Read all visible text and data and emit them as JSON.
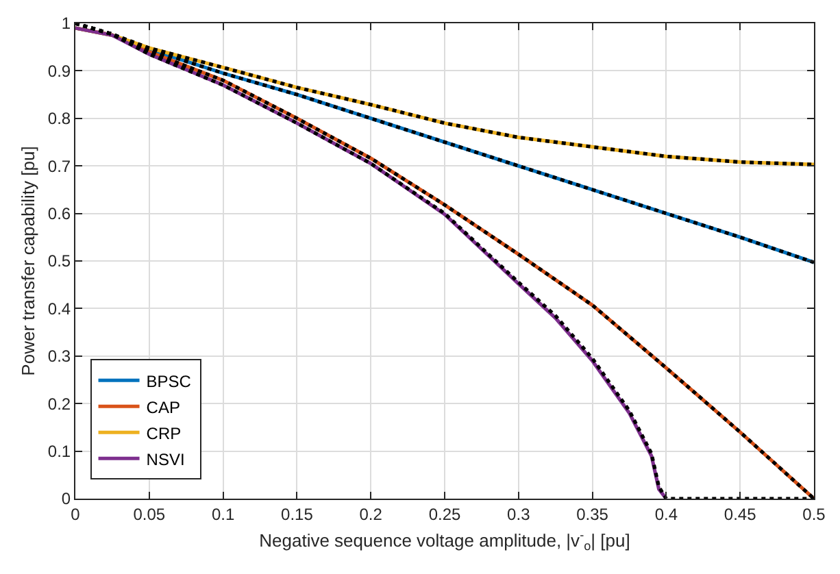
{
  "chart_data": {
    "type": "line",
    "xlabel": "Negative sequence voltage amplitude, |v$^{-}$$_{o}$| [pu]",
    "ylabel": "Power transfer capability [pu]",
    "xlim": [
      0,
      0.5
    ],
    "xticks": [
      0,
      0.05,
      0.1,
      0.15,
      0.2,
      0.25,
      0.3,
      0.35,
      0.4,
      0.45,
      0.5
    ],
    "ylim": [
      0,
      1
    ],
    "yticks": [
      0,
      0.1,
      0.2,
      0.3,
      0.4,
      0.5,
      0.6,
      0.7,
      0.8,
      0.9,
      1
    ],
    "grid": true,
    "legend": "bottom left",
    "line_style": "solid",
    "marker": "none",
    "series": [
      {
        "name": "BPSC",
        "color": "#0072bd",
        "x": [
          0,
          0.025,
          0.05,
          0.1,
          0.15,
          0.2,
          0.25,
          0.3,
          0.35,
          0.4,
          0.45,
          0.5
        ],
        "values": [
          0.99,
          0.975,
          0.945,
          0.895,
          0.85,
          0.8,
          0.75,
          0.7,
          0.65,
          0.6,
          0.55,
          0.497
        ]
      },
      {
        "name": "CAP",
        "color": "#d95319",
        "x": [
          0,
          0.025,
          0.05,
          0.1,
          0.15,
          0.2,
          0.25,
          0.3,
          0.35,
          0.4,
          0.45,
          0.5
        ],
        "values": [
          0.99,
          0.975,
          0.94,
          0.88,
          0.8,
          0.716,
          0.618,
          0.514,
          0.407,
          0.275,
          0.14,
          0.0
        ]
      },
      {
        "name": "CRP",
        "color": "#edb120",
        "x": [
          0,
          0.025,
          0.05,
          0.1,
          0.15,
          0.2,
          0.25,
          0.3,
          0.35,
          0.4,
          0.45,
          0.5
        ],
        "values": [
          0.99,
          0.975,
          0.948,
          0.907,
          0.865,
          0.829,
          0.79,
          0.76,
          0.74,
          0.72,
          0.708,
          0.703
        ]
      },
      {
        "name": "NSVI",
        "color": "#7e2f8e",
        "x": [
          0,
          0.025,
          0.05,
          0.1,
          0.15,
          0.2,
          0.25,
          0.3,
          0.325,
          0.35,
          0.375,
          0.39,
          0.395,
          0.4
        ],
        "values": [
          0.99,
          0.975,
          0.935,
          0.87,
          0.79,
          0.705,
          0.598,
          0.452,
          0.38,
          0.29,
          0.18,
          0.09,
          0.02,
          0.0
        ]
      },
      {
        "color": "#000000",
        "line_style": "dotted",
        "x": [
          0,
          0.025,
          0.05,
          0.1,
          0.15,
          0.2,
          0.25,
          0.3,
          0.35,
          0.4,
          0.45,
          0.5
        ],
        "values": [
          1.0,
          0.977,
          0.945,
          0.895,
          0.85,
          0.8,
          0.75,
          0.7,
          0.65,
          0.6,
          0.55,
          0.497
        ]
      },
      {
        "color": "#000000",
        "line_style": "dotted",
        "x": [
          0,
          0.025,
          0.05,
          0.1,
          0.15,
          0.2,
          0.25,
          0.3,
          0.35,
          0.4,
          0.45,
          0.5
        ],
        "values": [
          1.0,
          0.977,
          0.94,
          0.88,
          0.8,
          0.716,
          0.618,
          0.514,
          0.407,
          0.275,
          0.14,
          0.0
        ]
      },
      {
        "color": "#000000",
        "line_style": "dotted",
        "x": [
          0,
          0.025,
          0.05,
          0.1,
          0.15,
          0.2,
          0.25,
          0.3,
          0.35,
          0.4,
          0.45,
          0.5
        ],
        "values": [
          1.0,
          0.977,
          0.948,
          0.907,
          0.865,
          0.829,
          0.79,
          0.76,
          0.74,
          0.72,
          0.708,
          0.703
        ]
      },
      {
        "color": "#000000",
        "line_style": "dotted",
        "x": [
          0,
          0.025,
          0.05,
          0.1,
          0.15,
          0.2,
          0.25,
          0.3,
          0.325,
          0.35,
          0.375,
          0.39,
          0.395,
          0.4,
          0.45,
          0.5
        ],
        "values": [
          1.0,
          0.977,
          0.935,
          0.87,
          0.79,
          0.705,
          0.6,
          0.455,
          0.385,
          0.295,
          0.185,
          0.095,
          0.025,
          0.0,
          0.0,
          0.0
        ]
      }
    ]
  }
}
